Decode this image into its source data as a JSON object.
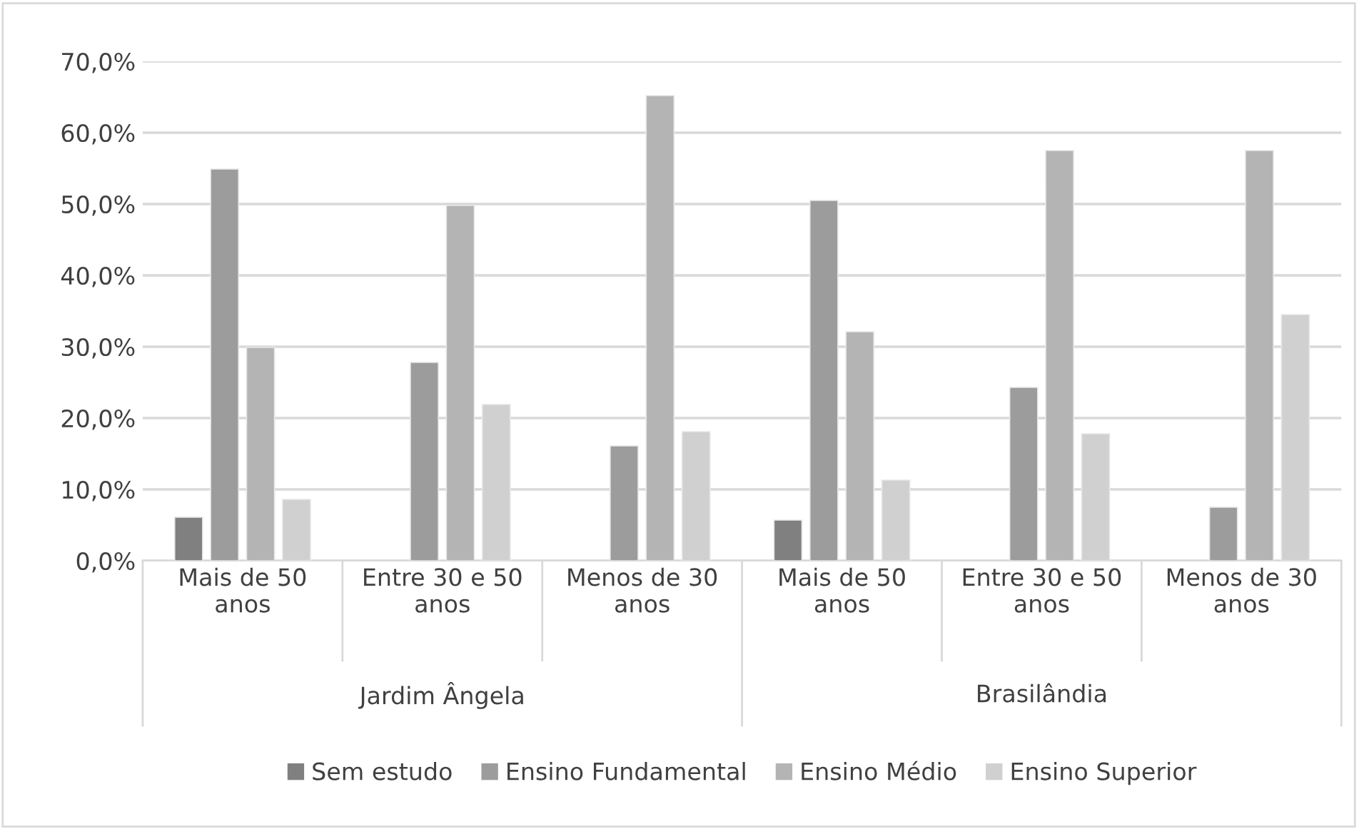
{
  "chart_data": {
    "type": "bar",
    "categories": [
      "Mais de 50 anos",
      "Entre 30 e 50 anos",
      "Menos de 30 anos",
      "Mais de 50 anos",
      "Entre 30 e 50 anos",
      "Menos de 30 anos"
    ],
    "annotations": [
      "Jardim Ângela",
      "Brasilândia"
    ],
    "series": [
      {
        "name": "Sem estudo",
        "color": "#808080",
        "values": [
          6.1,
          null,
          null,
          5.7,
          null,
          null
        ]
      },
      {
        "name": "Ensino Fundamental",
        "color": "#9c9c9c",
        "values": [
          54.9,
          27.8,
          16.1,
          50.5,
          24.3,
          7.5
        ]
      },
      {
        "name": "Ensino Médio",
        "color": "#b4b4b4",
        "values": [
          29.9,
          49.8,
          65.2,
          32.1,
          57.5,
          57.5
        ]
      },
      {
        "name": "Ensino Superior",
        "color": "#d0d0d0",
        "values": [
          8.6,
          21.9,
          18.1,
          11.3,
          17.8,
          34.5
        ]
      }
    ],
    "ylim": [
      0,
      70
    ],
    "yticks": [
      {
        "value": 0,
        "label": "0,0%"
      },
      {
        "value": 10,
        "label": "10,0%"
      },
      {
        "value": 20,
        "label": "20,0%"
      },
      {
        "value": 30,
        "label": "30,0%"
      },
      {
        "value": 40,
        "label": "40,0%"
      },
      {
        "value": 50,
        "label": "50,0%"
      },
      {
        "value": 60,
        "label": "60,0%"
      },
      {
        "value": 70,
        "label": "70,0%"
      }
    ],
    "grid": "y",
    "legend": "bottom"
  }
}
